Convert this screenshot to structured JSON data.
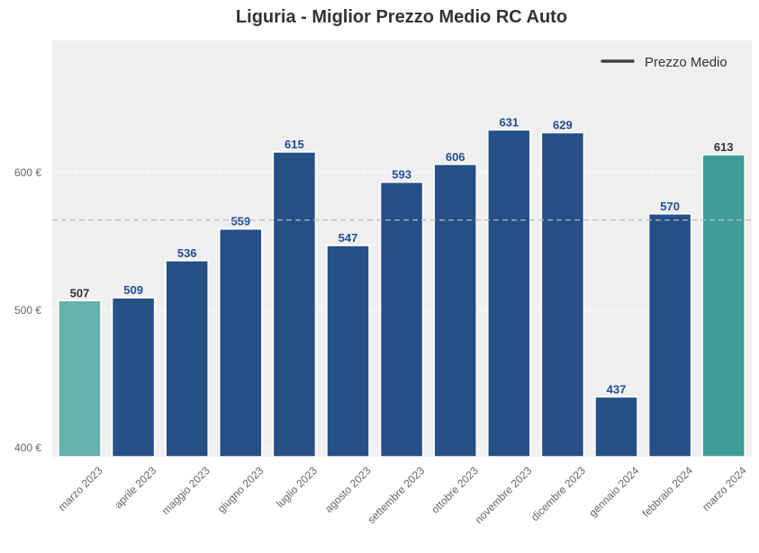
{
  "chart_data": {
    "type": "bar",
    "title": "Liguria - Miglior Prezzo Medio RC Auto",
    "xlabel": "",
    "ylabel": "",
    "categories": [
      "marzo 2023",
      "aprile 2023",
      "maggio 2023",
      "giugno 2023",
      "luglio 2023",
      "agosto 2023",
      "settembre 2023",
      "ottobre 2023",
      "novembre 2023",
      "dicembre 2023",
      "gennaio 2024",
      "febbraio 2024",
      "marzo 2024"
    ],
    "values": [
      507,
      509,
      536,
      559,
      615,
      547,
      593,
      606,
      631,
      629,
      437,
      570,
      613
    ],
    "ylim": [
      393.5,
      696
    ],
    "yticks": [
      400,
      500,
      600
    ],
    "ytick_labels": [
      "400 €",
      "500 €",
      "600 €"
    ],
    "mean_line": {
      "label": "Prezzo Medio",
      "value": 565.5
    },
    "legend_position": "top-right",
    "grid": true,
    "colors": {
      "first": "#66b2ad",
      "middle": "#264f87",
      "last": "#3e9e98",
      "label_blue": "#1f4e99",
      "label_dark": "#333333",
      "background": "#f0f0f0"
    }
  }
}
